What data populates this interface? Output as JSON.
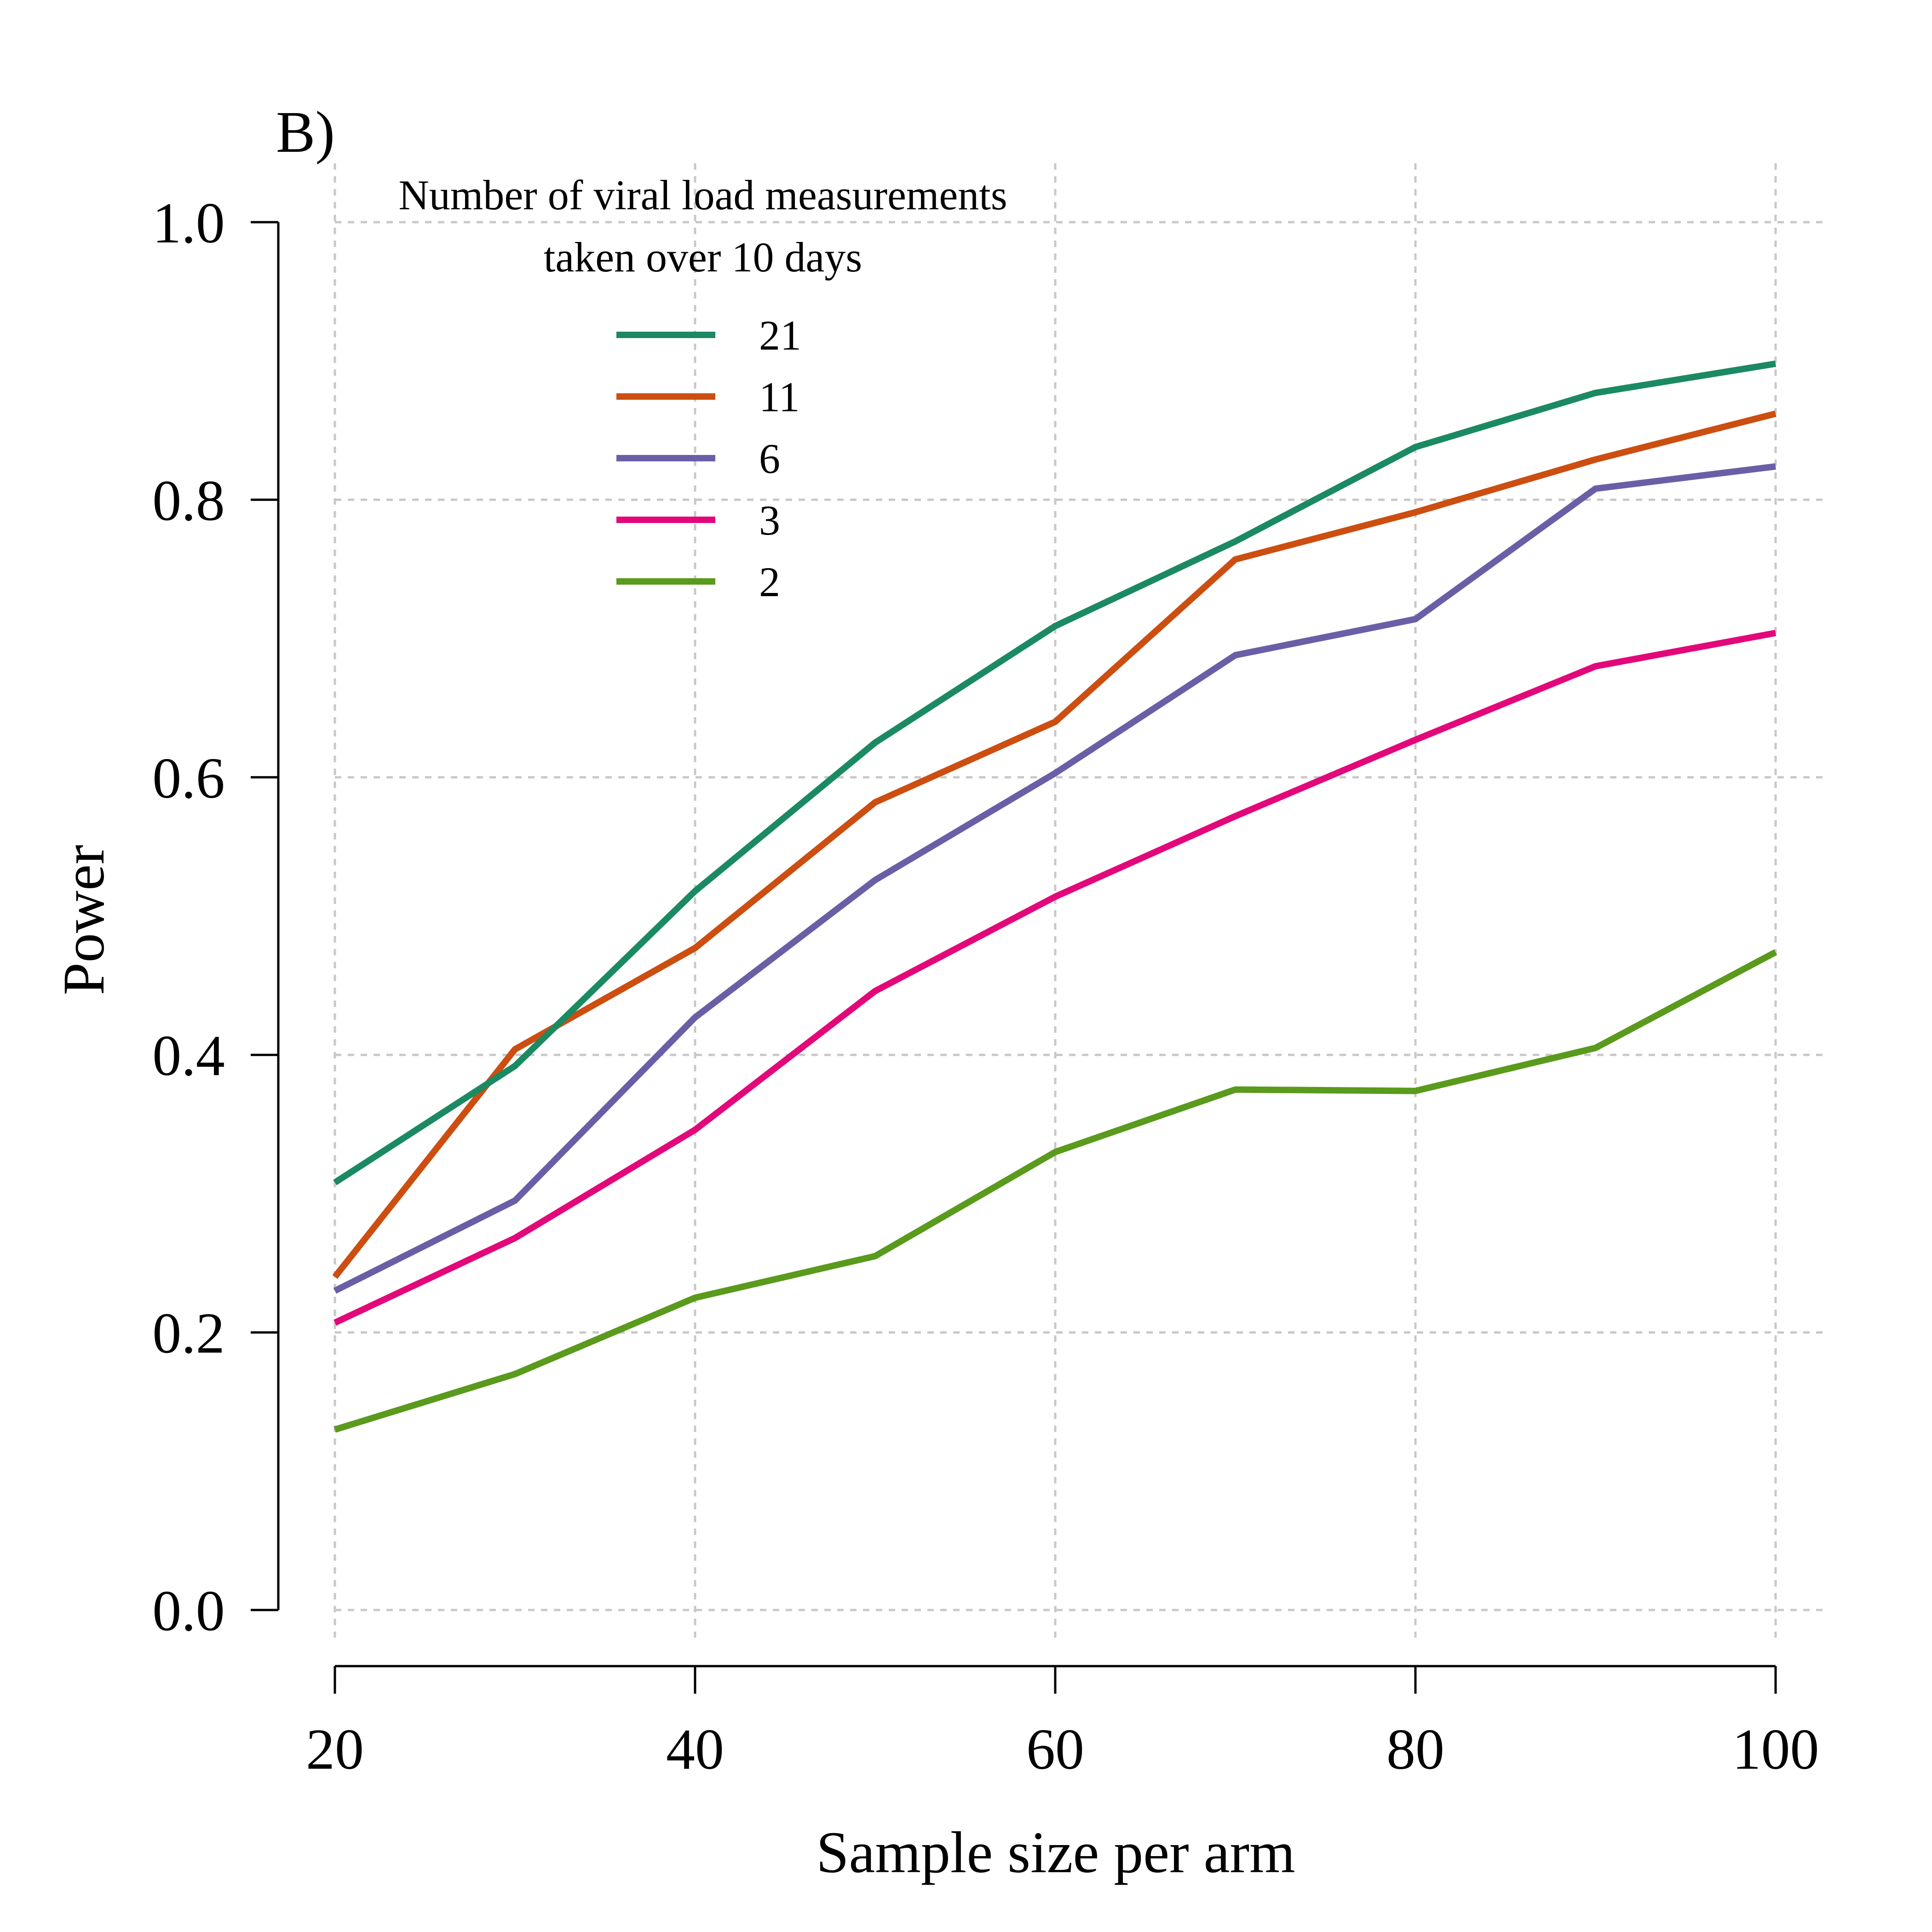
{
  "chart_data": {
    "type": "line",
    "panel_label": "B)",
    "xlabel": "Sample size per arm",
    "ylabel": "Power",
    "x": [
      20,
      30,
      40,
      50,
      60,
      70,
      80,
      90,
      100
    ],
    "xlim": [
      20,
      100
    ],
    "ylim": [
      0.0,
      1.0
    ],
    "x_ticks": [
      20,
      40,
      60,
      80,
      100
    ],
    "x_tick_labels": [
      "20",
      "40",
      "60",
      "80",
      "100"
    ],
    "y_ticks": [
      0.0,
      0.2,
      0.4,
      0.6,
      0.8,
      1.0
    ],
    "y_tick_labels": [
      "0.0",
      "0.2",
      "0.4",
      "0.6",
      "0.8",
      "1.0"
    ],
    "grid": true,
    "legend": {
      "title_line1": "Number of viral load measurements",
      "title_line2": "taken over 10 days",
      "position": "top-left"
    },
    "series": [
      {
        "name": "21",
        "color": "#1b8a62",
        "values": [
          0.308,
          0.392,
          0.518,
          0.625,
          0.709,
          0.77,
          0.838,
          0.877,
          0.898
        ]
      },
      {
        "name": "11",
        "color": "#cc4e10",
        "values": [
          0.24,
          0.404,
          0.477,
          0.582,
          0.64,
          0.757,
          0.791,
          0.829,
          0.862
        ]
      },
      {
        "name": "6",
        "color": "#6a5fa6",
        "values": [
          0.23,
          0.295,
          0.427,
          0.526,
          0.603,
          0.688,
          0.714,
          0.808,
          0.824
        ]
      },
      {
        "name": "3",
        "color": "#e3087a",
        "values": [
          0.207,
          0.268,
          0.346,
          0.446,
          0.514,
          0.572,
          0.627,
          0.68,
          0.704
        ]
      },
      {
        "name": "2",
        "color": "#5a9a1c",
        "values": [
          0.13,
          0.17,
          0.225,
          0.255,
          0.33,
          0.375,
          0.374,
          0.405,
          0.474
        ]
      }
    ]
  }
}
